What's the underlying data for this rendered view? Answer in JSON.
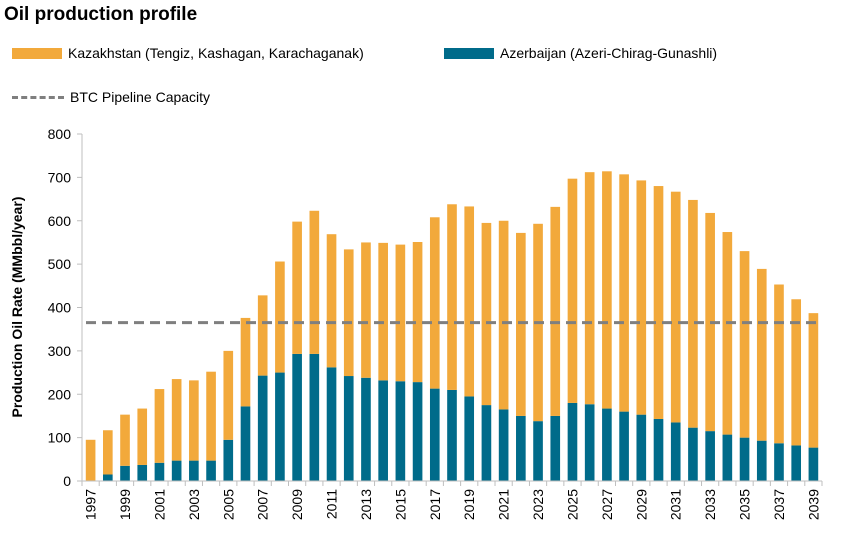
{
  "chart_data": {
    "type": "bar",
    "stacked": true,
    "title": "Oil production profile",
    "ylabel": "Production Oil Rate (MMbbl/year)",
    "xlabel": "",
    "ylim": [
      0,
      800
    ],
    "yticks": [
      0,
      100,
      200,
      300,
      400,
      500,
      600,
      700,
      800
    ],
    "grid": false,
    "legend_position": "top",
    "categories": [
      "1997",
      "1998",
      "1999",
      "2000",
      "2001",
      "2002",
      "2003",
      "2004",
      "2005",
      "2006",
      "2007",
      "2008",
      "2009",
      "2010",
      "2011",
      "2012",
      "2013",
      "2014",
      "2015",
      "2016",
      "2017",
      "2018",
      "2019",
      "2020",
      "2021",
      "2022",
      "2023",
      "2024",
      "2025",
      "2026",
      "2027",
      "2028",
      "2029",
      "2030",
      "2031",
      "2032",
      "2033",
      "2034",
      "2035",
      "2036",
      "2037",
      "2038",
      "2039"
    ],
    "xtick_labels": [
      "1997",
      "",
      "1999",
      "",
      "2001",
      "",
      "2003",
      "",
      "2005",
      "",
      "2007",
      "",
      "2009",
      "",
      "2011",
      "",
      "2013",
      "",
      "2015",
      "",
      "2017",
      "",
      "2019",
      "",
      "2021",
      "",
      "2023",
      "",
      "2025",
      "",
      "2027",
      "",
      "2029",
      "",
      "2031",
      "",
      "2033",
      "",
      "2035",
      "",
      "2037",
      "",
      "2039"
    ],
    "series": [
      {
        "name": "Azerbaijan (Azeri-Chirag-Gunashli)",
        "color": "#006b8a",
        "values": [
          0,
          15,
          35,
          37,
          42,
          47,
          47,
          47,
          95,
          172,
          243,
          250,
          293,
          293,
          262,
          242,
          238,
          232,
          230,
          228,
          213,
          210,
          195,
          175,
          165,
          150,
          138,
          150,
          180,
          177,
          167,
          160,
          153,
          143,
          135,
          123,
          115,
          107,
          100,
          93,
          87,
          82,
          77
        ]
      },
      {
        "name": "Kazakhstan (Tengiz, Kashagan, Karachaganak)",
        "color": "#f2a93b",
        "values": [
          95,
          102,
          118,
          130,
          170,
          188,
          185,
          205,
          205,
          204,
          185,
          256,
          305,
          330,
          307,
          292,
          312,
          317,
          315,
          323,
          395,
          428,
          438,
          420,
          435,
          422,
          455,
          482,
          517,
          535,
          547,
          547,
          540,
          537,
          532,
          525,
          503,
          467,
          430,
          396,
          366,
          337,
          310
        ]
      }
    ],
    "reference_line": {
      "name": "BTC Pipeline Capacity",
      "value": 365,
      "color": "#7f7f7f",
      "style": "dashed"
    }
  }
}
